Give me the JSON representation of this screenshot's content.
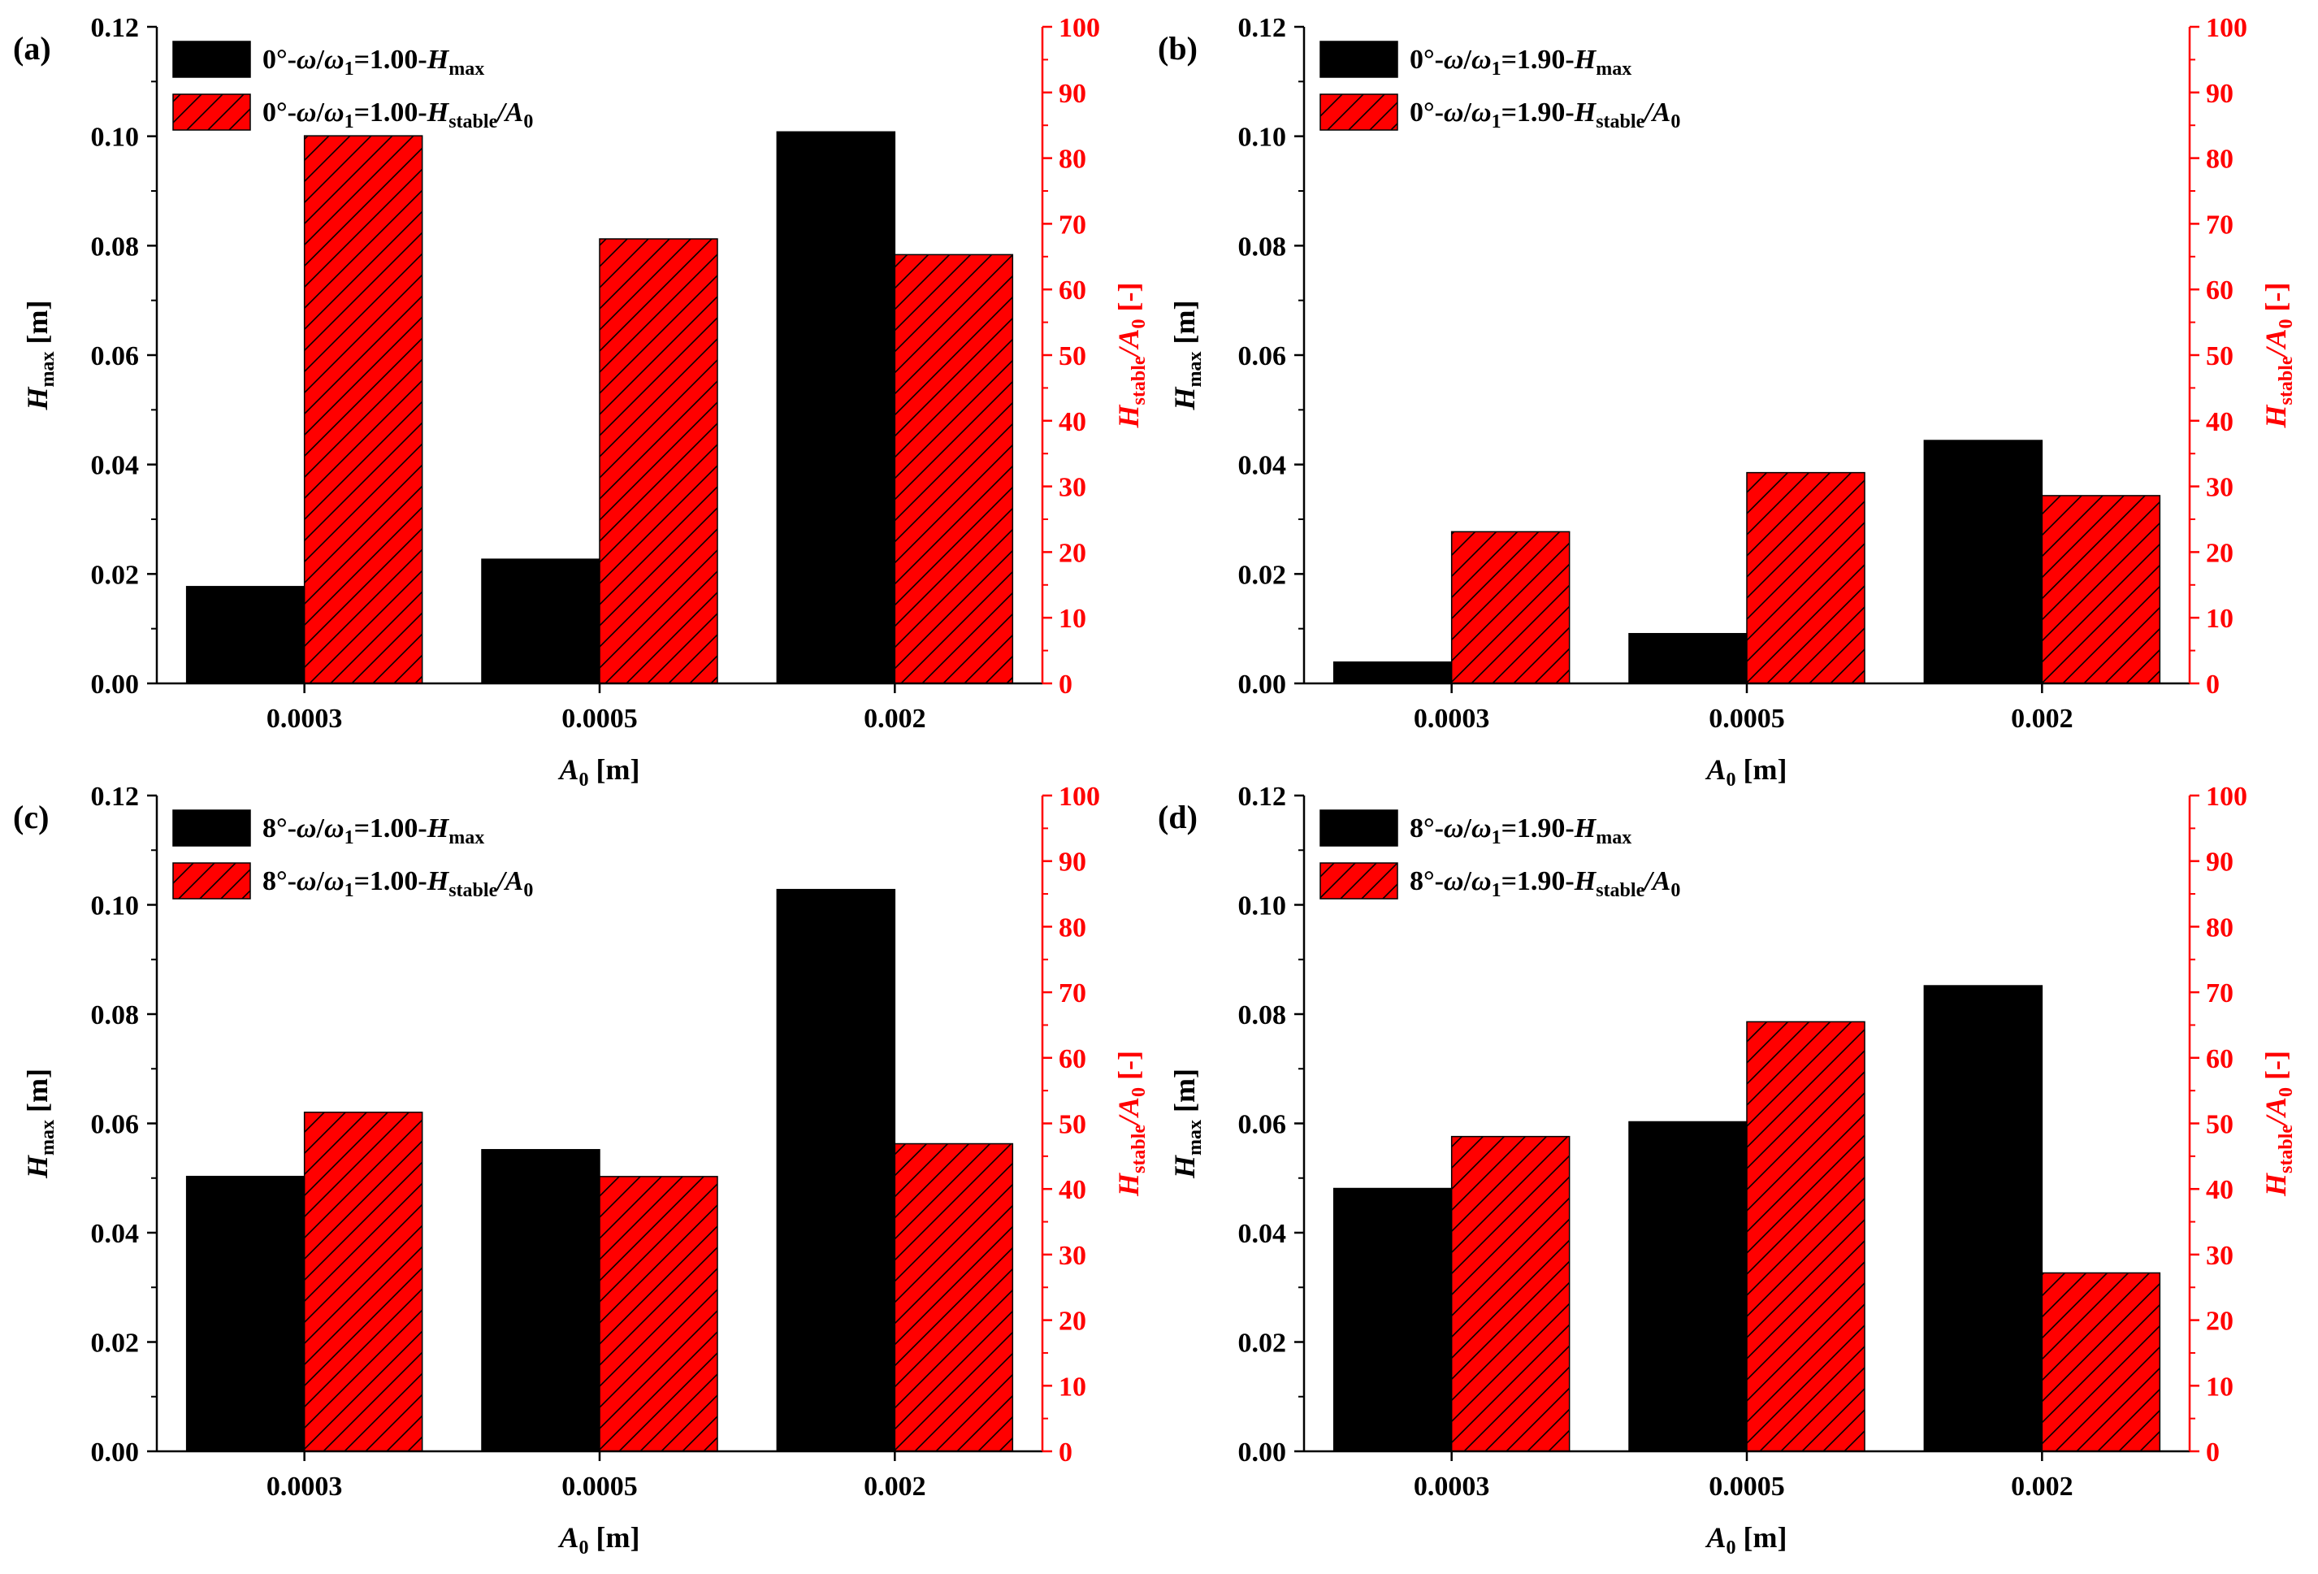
{
  "chart_data": [
    {
      "panel": "(a)",
      "type": "bar",
      "categories": [
        "0.0003",
        "0.0005",
        "0.002"
      ],
      "xlabel": {
        "main": "A",
        "sub": "0",
        "unit": " [m]"
      },
      "ylabel_left": {
        "main": "H",
        "sub": "max",
        "unit": " [m]"
      },
      "ylabel_right": {
        "main": "H",
        "sub": "stable",
        "mid": "/A",
        "sub2": "0",
        "unit": " [-]"
      },
      "ylim_left": [
        0,
        0.12
      ],
      "ylim_right": [
        0,
        100
      ],
      "yticks_left": [
        "0.00",
        "0.02",
        "0.04",
        "0.06",
        "0.08",
        "0.10",
        "0.12"
      ],
      "yticks_right": [
        "0",
        "10",
        "20",
        "30",
        "40",
        "50",
        "60",
        "70",
        "80",
        "90",
        "100"
      ],
      "series": [
        {
          "name": "0°-ω/ω1=1.00-Hmax",
          "legend": {
            "prefix": "0°-",
            "w": "ω",
            "slash": "/",
            "w1": "ω",
            "w1sub": "1",
            "eq": "=1.00-",
            "h": "H",
            "hsub": "max",
            "tail": "",
            "tailsub": ""
          },
          "axis": "left",
          "color": "#000000",
          "values": [
            0.0177,
            0.0227,
            0.1008
          ]
        },
        {
          "name": "0°-ω/ω1=1.00-Hstable/A0",
          "legend": {
            "prefix": "0°-",
            "w": "ω",
            "slash": "/",
            "w1": "ω",
            "w1sub": "1",
            "eq": "=1.00-",
            "h": "H",
            "hsub": "stable",
            "tail": "/A",
            "tailsub": "0"
          },
          "axis": "right",
          "color": "#ff0000",
          "values": [
            83.4,
            67.7,
            65.3
          ]
        }
      ]
    },
    {
      "panel": "(b)",
      "type": "bar",
      "categories": [
        "0.0003",
        "0.0005",
        "0.002"
      ],
      "xlabel": {
        "main": "A",
        "sub": "0",
        "unit": " [m]"
      },
      "ylabel_left": {
        "main": "H",
        "sub": "max",
        "unit": " [m]"
      },
      "ylabel_right": {
        "main": "H",
        "sub": "stable",
        "mid": "/A",
        "sub2": "0",
        "unit": " [-]"
      },
      "ylim_left": [
        0,
        0.12
      ],
      "ylim_right": [
        0,
        100
      ],
      "yticks_left": [
        "0.00",
        "0.02",
        "0.04",
        "0.06",
        "0.08",
        "0.10",
        "0.12"
      ],
      "yticks_right": [
        "0",
        "10",
        "20",
        "30",
        "40",
        "50",
        "60",
        "70",
        "80",
        "90",
        "100"
      ],
      "series": [
        {
          "name": "0°-ω/ω1=1.90-Hmax",
          "legend": {
            "prefix": "0°-",
            "w": "ω",
            "slash": "/",
            "w1": "ω",
            "w1sub": "1",
            "eq": "=1.90-",
            "h": "H",
            "hsub": "max",
            "tail": "",
            "tailsub": ""
          },
          "axis": "left",
          "color": "#000000",
          "values": [
            0.0039,
            0.0091,
            0.0444
          ]
        },
        {
          "name": "0°-ω/ω1=1.90-Hstable/A0",
          "legend": {
            "prefix": "0°-",
            "w": "ω",
            "slash": "/",
            "w1": "ω",
            "w1sub": "1",
            "eq": "=1.90-",
            "h": "H",
            "hsub": "stable",
            "tail": "/A",
            "tailsub": "0"
          },
          "axis": "right",
          "color": "#ff0000",
          "values": [
            23.1,
            32.1,
            28.6
          ]
        }
      ]
    },
    {
      "panel": "(c)",
      "type": "bar",
      "categories": [
        "0.0003",
        "0.0005",
        "0.002"
      ],
      "xlabel": {
        "main": "A",
        "sub": "0",
        "unit": " [m]"
      },
      "ylabel_left": {
        "main": "H",
        "sub": "max",
        "unit": " [m]"
      },
      "ylabel_right": {
        "main": "H",
        "sub": "stable",
        "mid": "/A",
        "sub2": "0",
        "unit": " [-]"
      },
      "ylim_left": [
        0,
        0.12
      ],
      "ylim_right": [
        0,
        100
      ],
      "yticks_left": [
        "0.00",
        "0.02",
        "0.04",
        "0.06",
        "0.08",
        "0.10",
        "0.12"
      ],
      "yticks_right": [
        "0",
        "10",
        "20",
        "30",
        "40",
        "50",
        "60",
        "70",
        "80",
        "90",
        "100"
      ],
      "series": [
        {
          "name": "8°-ω/ω1=1.00-Hmax",
          "legend": {
            "prefix": "8°-",
            "w": "ω",
            "slash": "/",
            "w1": "ω",
            "w1sub": "1",
            "eq": "=1.00-",
            "h": "H",
            "hsub": "max",
            "tail": "",
            "tailsub": ""
          },
          "axis": "left",
          "color": "#000000",
          "values": [
            0.0503,
            0.0552,
            0.1028
          ]
        },
        {
          "name": "8°-ω/ω1=1.00-Hstable/A0",
          "legend": {
            "prefix": "8°-",
            "w": "ω",
            "slash": "/",
            "w1": "ω",
            "w1sub": "1",
            "eq": "=1.00-",
            "h": "H",
            "hsub": "stable",
            "tail": "/A",
            "tailsub": "0"
          },
          "axis": "right",
          "color": "#ff0000",
          "values": [
            51.7,
            41.9,
            46.9
          ]
        }
      ]
    },
    {
      "panel": "(d)",
      "type": "bar",
      "categories": [
        "0.0003",
        "0.0005",
        "0.002"
      ],
      "xlabel": {
        "main": "A",
        "sub": "0",
        "unit": " [m]"
      },
      "ylabel_left": {
        "main": "H",
        "sub": "max",
        "unit": " [m]"
      },
      "ylabel_right": {
        "main": "H",
        "sub": "stable",
        "mid": "/A",
        "sub2": "0",
        "unit": " [-]"
      },
      "ylim_left": [
        0,
        0.12
      ],
      "ylim_right": [
        0,
        100
      ],
      "yticks_left": [
        "0.00",
        "0.02",
        "0.04",
        "0.06",
        "0.08",
        "0.10",
        "0.12"
      ],
      "yticks_right": [
        "0",
        "10",
        "20",
        "30",
        "40",
        "50",
        "60",
        "70",
        "80",
        "90",
        "100"
      ],
      "series": [
        {
          "name": "8°-ω/ω1=1.90-Hmax",
          "legend": {
            "prefix": "8°-",
            "w": "ω",
            "slash": "/",
            "w1": "ω",
            "w1sub": "1",
            "eq": "=1.90-",
            "h": "H",
            "hsub": "max",
            "tail": "",
            "tailsub": ""
          },
          "axis": "left",
          "color": "#000000",
          "values": [
            0.0481,
            0.0603,
            0.0852
          ]
        },
        {
          "name": "8°-ω/ω1=1.90-Hstable/A0",
          "legend": {
            "prefix": "8°-",
            "w": "ω",
            "slash": "/",
            "w1": "ω",
            "w1sub": "1",
            "eq": "=1.90-",
            "h": "H",
            "hsub": "stable",
            "tail": "/A",
            "tailsub": "0"
          },
          "axis": "right",
          "color": "#ff0000",
          "values": [
            48.0,
            65.5,
            27.2
          ]
        }
      ]
    }
  ]
}
